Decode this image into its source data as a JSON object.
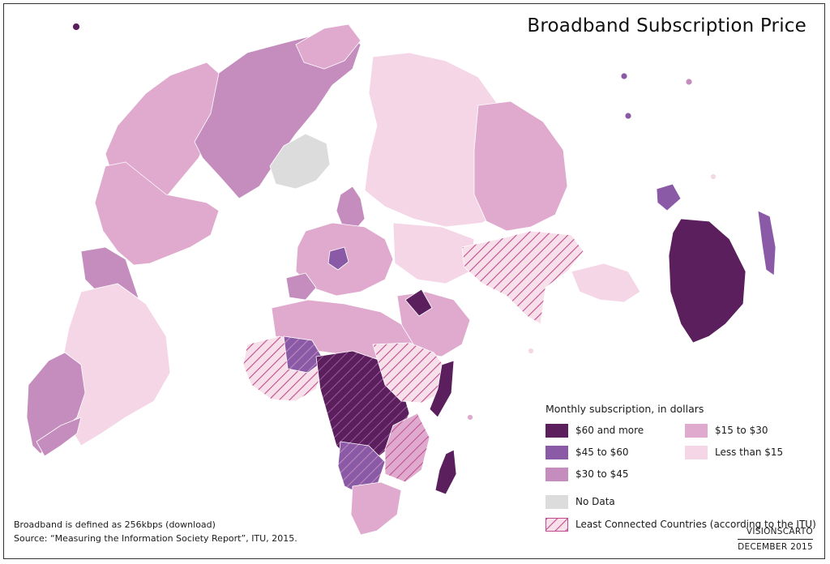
{
  "title": "Broadband Subscription Price",
  "legend": {
    "title": "Monthly subscription, in dollars",
    "classes": [
      {
        "label": "$60 and more",
        "color": "#5b1f5e"
      },
      {
        "label": "$45 to $60",
        "color": "#8a5aa6"
      },
      {
        "label": "$30 to $45",
        "color": "#c48dbe"
      },
      {
        "label": "$15 to $30",
        "color": "#dfaacd"
      },
      {
        "label": "Less than $15",
        "color": "#f4d6e6"
      }
    ],
    "no_data": {
      "label": "No Data",
      "color": "#dcdcdc"
    },
    "least_connected": {
      "label": "Least Connected Countries (according to the ITU)",
      "color": "#c04b8f"
    }
  },
  "footnote": {
    "definition": "Broadband is defined as 256kbps (download)",
    "source": "Source: “Measuring the Information Society Report”, ITU, 2015."
  },
  "credit": {
    "org": "VISIONSCARTO",
    "date": "DECEMBER 2015"
  }
}
